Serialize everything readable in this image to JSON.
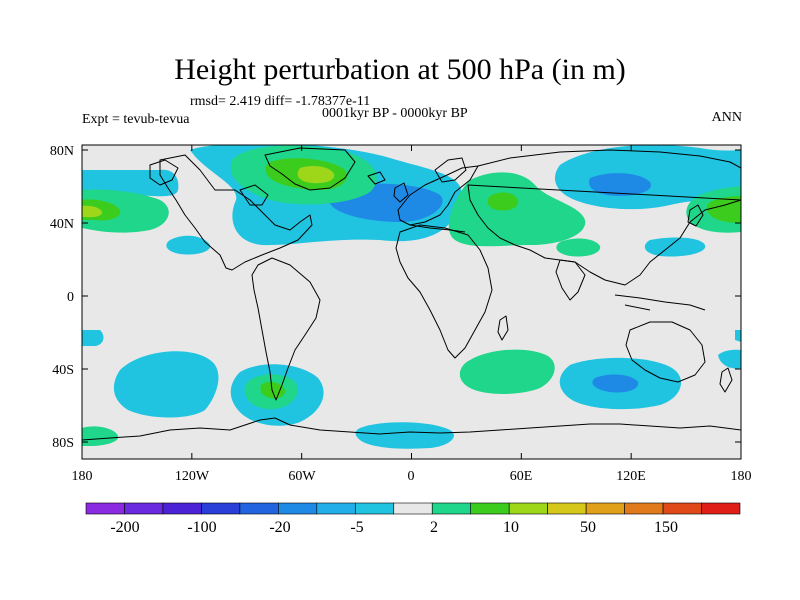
{
  "title": "Height perturbation at 500 hPa (in m)",
  "stats_label": "rmsd= 2.419 diff= -1.78377e-11",
  "period_label": "0001kyr BP - 0000kyr BP",
  "expt_label": "Expt = tevub-tevua",
  "season_label": "ANN",
  "y_ticks": [
    "80N",
    "40N",
    "0",
    "40S",
    "80S"
  ],
  "x_ticks": [
    "180",
    "120W",
    "60W",
    "0",
    "60E",
    "120E",
    "180"
  ],
  "colorbar": {
    "labels": [
      "-200",
      "-100",
      "-20",
      "-5",
      "2",
      "10",
      "50",
      "150"
    ],
    "colors": [
      "#8a2be2",
      "#6a2ae0",
      "#4b22d6",
      "#2a3ed8",
      "#2264e0",
      "#1f8ae6",
      "#22aee8",
      "#20c4e0",
      "#e8e8e8",
      "#1fd68a",
      "#3ccc1e",
      "#9ed61a",
      "#d6c81a",
      "#e0a01a",
      "#e07a1a",
      "#e04a18",
      "#e01e18"
    ]
  },
  "map_colors": {
    "background": "#e8e8e8",
    "light_blue": "#20c4e0",
    "mid_blue": "#1f8ae6",
    "dark_blue": "#2264e0",
    "green": "#1fd68a",
    "bright_green": "#3ccc1e",
    "yellow_green": "#9ed61a",
    "coast": "#000000"
  }
}
